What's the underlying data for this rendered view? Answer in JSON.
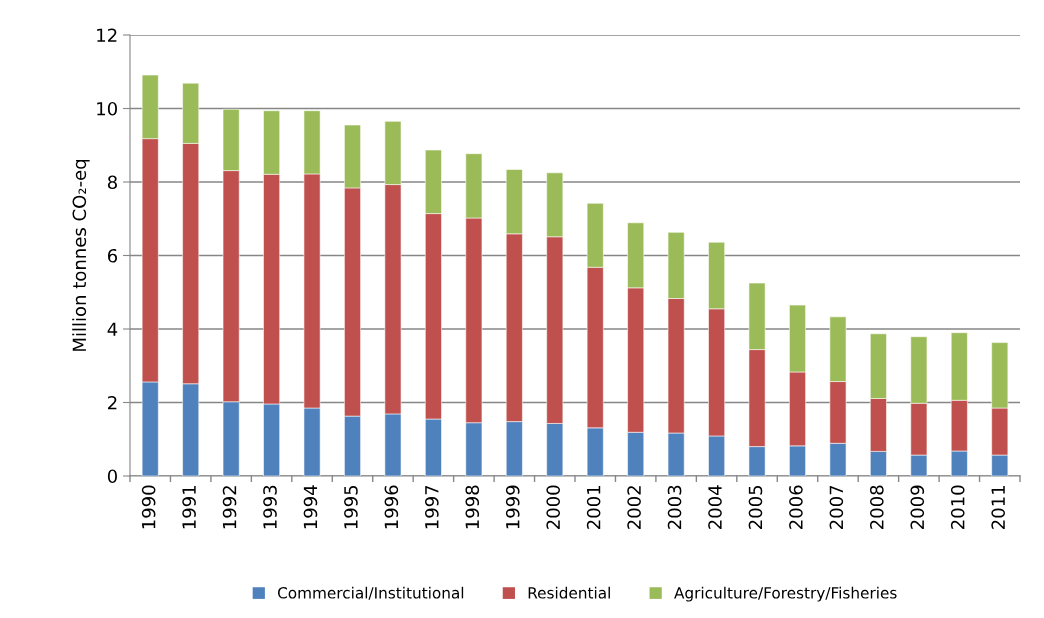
{
  "chart_data": {
    "type": "bar",
    "stacked": true,
    "ylabel": "Million tonnes CO₂-eq",
    "categories": [
      "1990",
      "1991",
      "1992",
      "1993",
      "1994",
      "1995",
      "1996",
      "1997",
      "1998",
      "1999",
      "2000",
      "2001",
      "2002",
      "2003",
      "2004",
      "2005",
      "2006",
      "2007",
      "2008",
      "2009",
      "2010",
      "2011"
    ],
    "series": [
      {
        "name": "Commercial/Institutional",
        "color": "#4f81bd",
        "values": [
          2.56,
          2.51,
          2.02,
          1.96,
          1.85,
          1.63,
          1.69,
          1.55,
          1.45,
          1.48,
          1.43,
          1.31,
          1.19,
          1.17,
          1.09,
          0.8,
          0.82,
          0.89,
          0.67,
          0.57,
          0.68,
          0.57
        ]
      },
      {
        "name": "Residential",
        "color": "#c0504d",
        "values": [
          6.62,
          6.54,
          6.29,
          6.25,
          6.37,
          6.21,
          6.24,
          5.59,
          5.57,
          5.11,
          5.08,
          4.37,
          3.93,
          3.66,
          3.46,
          2.64,
          2.01,
          1.68,
          1.44,
          1.41,
          1.38,
          1.28
        ]
      },
      {
        "name": "Agriculture/Forestry/Fisheries",
        "color": "#9bbb59",
        "values": [
          1.73,
          1.64,
          1.67,
          1.73,
          1.72,
          1.71,
          1.72,
          1.73,
          1.75,
          1.75,
          1.74,
          1.74,
          1.77,
          1.8,
          1.81,
          1.81,
          1.82,
          1.76,
          1.76,
          1.81,
          1.84,
          1.78
        ]
      }
    ],
    "ylim": [
      0,
      12
    ],
    "yticks": [
      0,
      2,
      4,
      6,
      8,
      10,
      12
    ],
    "grid": "y",
    "legend": "bottom"
  }
}
